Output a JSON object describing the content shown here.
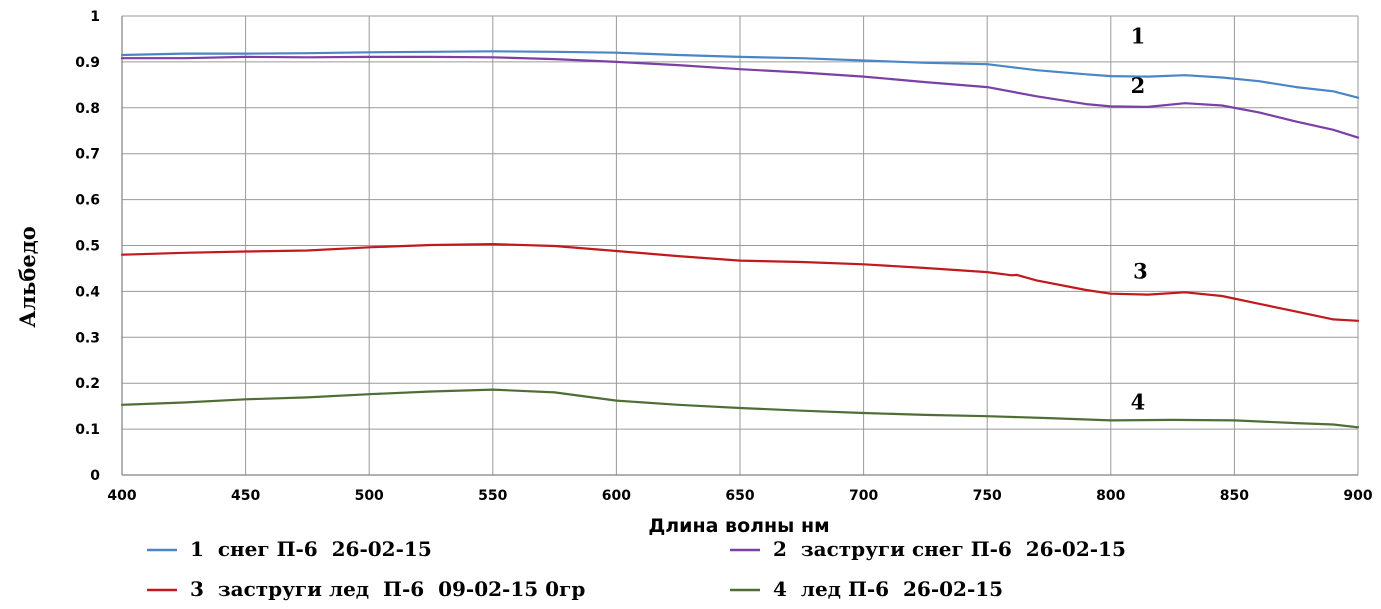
{
  "chart_data": {
    "type": "line",
    "xlabel": "Длина волны нм",
    "ylabel": "Альбедо",
    "xlim": [
      400,
      900
    ],
    "ylim": [
      0,
      1
    ],
    "x_ticks": [
      400,
      450,
      500,
      550,
      600,
      650,
      700,
      750,
      800,
      850,
      900
    ],
    "y_ticks": [
      0,
      0.1,
      0.2,
      0.3,
      0.4,
      0.5,
      0.6,
      0.7,
      0.8,
      0.9,
      1
    ],
    "x_tick_labels": [
      "400",
      "450",
      "500",
      "550",
      "600",
      "650",
      "700",
      "750",
      "800",
      "850",
      "900"
    ],
    "y_tick_labels": [
      "0",
      "0.1",
      "0.2",
      "0.3",
      "0.4",
      "0.5",
      "0.6",
      "0.7",
      "0.8",
      "0.9",
      "1"
    ],
    "grid": true,
    "legend_position": "bottom",
    "series": [
      {
        "name": "1  снег П-6  26-02-15",
        "curve_label": "1",
        "label_at": [
          811,
          0.94
        ],
        "color": "#4a86c5",
        "x": [
          400,
          425,
          450,
          475,
          500,
          525,
          550,
          575,
          600,
          625,
          650,
          675,
          700,
          725,
          750,
          770,
          790,
          800,
          815,
          830,
          845,
          860,
          875,
          890,
          900
        ],
        "y": [
          0.915,
          0.918,
          0.918,
          0.919,
          0.921,
          0.922,
          0.923,
          0.922,
          0.92,
          0.915,
          0.911,
          0.908,
          0.903,
          0.898,
          0.895,
          0.882,
          0.873,
          0.869,
          0.868,
          0.871,
          0.866,
          0.858,
          0.845,
          0.836,
          0.822
        ]
      },
      {
        "name": "2  заструги снег П-6  26-02-15",
        "curve_label": "2",
        "label_at": [
          811,
          0.832
        ],
        "color": "#7b3fa6",
        "x": [
          400,
          425,
          450,
          475,
          500,
          525,
          550,
          575,
          600,
          625,
          650,
          675,
          700,
          725,
          750,
          770,
          790,
          800,
          815,
          830,
          845,
          860,
          875,
          890,
          900
        ],
        "y": [
          0.908,
          0.908,
          0.911,
          0.91,
          0.911,
          0.911,
          0.91,
          0.906,
          0.9,
          0.893,
          0.884,
          0.877,
          0.868,
          0.856,
          0.845,
          0.825,
          0.808,
          0.803,
          0.802,
          0.81,
          0.805,
          0.79,
          0.77,
          0.752,
          0.735
        ]
      },
      {
        "name": "3  заструги лед  П-6  09-02-15 0гр",
        "curve_label": "3",
        "label_at": [
          812,
          0.428
        ],
        "color": "#c0191e",
        "x": [
          400,
          425,
          450,
          475,
          500,
          525,
          550,
          575,
          600,
          625,
          650,
          675,
          700,
          725,
          750,
          760,
          762,
          770,
          790,
          800,
          815,
          830,
          845,
          860,
          875,
          890,
          900
        ],
        "y": [
          0.48,
          0.484,
          0.487,
          0.489,
          0.496,
          0.501,
          0.503,
          0.499,
          0.488,
          0.477,
          0.467,
          0.464,
          0.459,
          0.451,
          0.442,
          0.435,
          0.436,
          0.424,
          0.403,
          0.395,
          0.393,
          0.398,
          0.39,
          0.373,
          0.356,
          0.339,
          0.336
        ]
      },
      {
        "name": "4  лед П-6  26-02-15",
        "curve_label": "4",
        "label_at": [
          811,
          0.143
        ],
        "color": "#4f6e35",
        "x": [
          400,
          425,
          450,
          475,
          500,
          525,
          550,
          575,
          600,
          625,
          650,
          675,
          700,
          725,
          750,
          775,
          800,
          825,
          850,
          875,
          890,
          900
        ],
        "y": [
          0.153,
          0.158,
          0.165,
          0.169,
          0.176,
          0.182,
          0.186,
          0.18,
          0.162,
          0.153,
          0.146,
          0.14,
          0.135,
          0.131,
          0.128,
          0.124,
          0.119,
          0.12,
          0.119,
          0.113,
          0.11,
          0.104
        ]
      }
    ]
  }
}
